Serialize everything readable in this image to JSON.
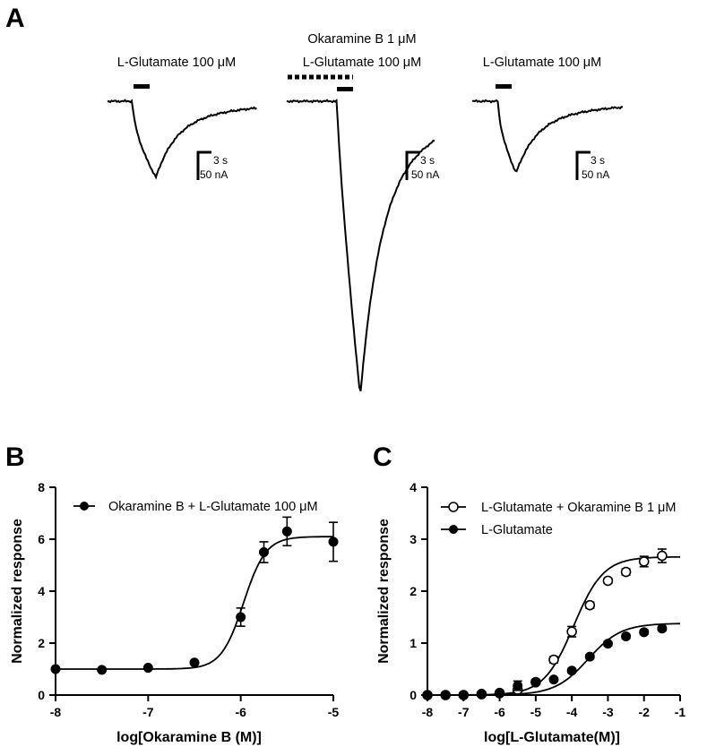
{
  "panel_a": {
    "letter": "A",
    "traces": [
      {
        "labels": [
          "L-Glutamate 100 μM"
        ],
        "scale_time": "3 s",
        "scale_current": "50 nA",
        "peak_na": 85
      },
      {
        "labels": [
          "Okaramine B 1 μM",
          "L-Glutamate 100 μM"
        ],
        "scale_time": "3 s",
        "scale_current": "50 nA",
        "peak_na": 330
      },
      {
        "labels": [
          "L-Glutamate 100 μM"
        ],
        "scale_time": "3 s",
        "scale_current": "50 nA",
        "peak_na": 80
      }
    ]
  },
  "chart_data": [
    {
      "panel": "B",
      "type": "scatter",
      "xlabel": "log[Okaramine B (M)]",
      "ylabel": "Normalized response",
      "xlim": [
        -8,
        -5
      ],
      "ylim": [
        0,
        8
      ],
      "xticks": [
        -8,
        -7,
        -6,
        -5
      ],
      "yticks": [
        0,
        2,
        4,
        6,
        8
      ],
      "legend_position": "top",
      "series": [
        {
          "name": "Okaramine B + L-Glutamate 100 μM",
          "marker": "filled-circle",
          "x": [
            -8,
            -7.5,
            -7,
            -6.5,
            -6,
            -5.75,
            -5.5,
            -5
          ],
          "y": [
            1.0,
            0.97,
            1.05,
            1.25,
            3.0,
            5.5,
            6.3,
            5.9
          ],
          "error": [
            0,
            0,
            0.03,
            0.05,
            0.35,
            0.4,
            0.55,
            0.75
          ],
          "fit": {
            "bottom": 1.0,
            "top": 6.1,
            "log_ec50": -5.97,
            "hill": 3.6
          }
        }
      ]
    },
    {
      "panel": "C",
      "type": "scatter",
      "xlabel": "log[L-Glutamate(M)]",
      "ylabel": "Normalized response",
      "xlim": [
        -8,
        -1
      ],
      "ylim": [
        0,
        4
      ],
      "xticks": [
        -8,
        -7,
        -6,
        -5,
        -4,
        -3,
        -2,
        -1
      ],
      "yticks": [
        0,
        1,
        2,
        3,
        4
      ],
      "legend_position": "top",
      "series": [
        {
          "name": "L-Glutamate + Okaramine B 1 μM",
          "marker": "open-circle",
          "x": [
            -8,
            -7.5,
            -7,
            -6.5,
            -6,
            -5.5,
            -5,
            -4.5,
            -4,
            -3.5,
            -3,
            -2.5,
            -2,
            -1.5
          ],
          "y": [
            0,
            0,
            0,
            0.02,
            0.04,
            0.1,
            0.25,
            0.68,
            1.22,
            1.73,
            2.2,
            2.37,
            2.57,
            2.68
          ],
          "error": [
            0,
            0,
            0,
            0,
            0.02,
            0.04,
            0.05,
            0.06,
            0.1,
            0.06,
            0.05,
            0.06,
            0.1,
            0.13
          ],
          "fit": {
            "bottom": 0,
            "top": 2.66,
            "log_ec50": -3.95,
            "hill": 1.05
          }
        },
        {
          "name": "L-Glutamate",
          "marker": "filled-circle",
          "x": [
            -8,
            -7.5,
            -7,
            -6.5,
            -6,
            -5.5,
            -5,
            -4.5,
            -4,
            -3.5,
            -3,
            -2.5,
            -2,
            -1.5
          ],
          "y": [
            0,
            0,
            0,
            0.01,
            0.03,
            0.18,
            0.24,
            0.3,
            0.47,
            0.74,
            0.99,
            1.13,
            1.21,
            1.28
          ],
          "error": [
            0,
            0,
            0,
            0,
            0.01,
            0.09,
            0.03,
            0.03,
            0.04,
            0.04,
            0.04,
            0.04,
            0.04,
            0.04
          ],
          "fit": {
            "bottom": 0,
            "top": 1.38,
            "log_ec50": -3.55,
            "hill": 0.95
          }
        }
      ]
    }
  ],
  "panel_letters": {
    "b": "B",
    "c": "C"
  }
}
